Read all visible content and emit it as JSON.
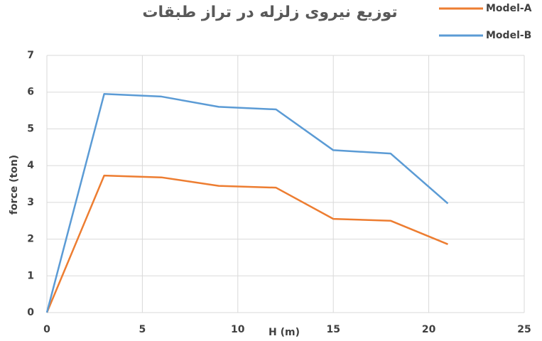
{
  "chart_data": {
    "type": "line",
    "title": "توزیع نیروی زلزله در تراز طبقات",
    "x_label": "H (m)",
    "y_label": "force (ton)",
    "x": [
      0,
      3,
      6,
      9,
      12,
      15,
      18,
      21
    ],
    "series": [
      {
        "name": "Model-A",
        "color": "#ed7d31",
        "values": [
          0,
          3.73,
          3.68,
          3.45,
          3.4,
          2.55,
          2.5,
          1.86
        ]
      },
      {
        "name": "Model-B",
        "color": "#5b9bd5",
        "values": [
          0,
          5.95,
          5.88,
          5.6,
          5.53,
          4.42,
          4.33,
          2.97
        ]
      }
    ],
    "xlim": [
      0,
      25
    ],
    "xticks": [
      0,
      5,
      10,
      15,
      20,
      25
    ],
    "ylim": [
      0,
      7
    ],
    "yticks": [
      0,
      1,
      2,
      3,
      4,
      5,
      6,
      7
    ],
    "grid": true,
    "legend": "top-right"
  }
}
